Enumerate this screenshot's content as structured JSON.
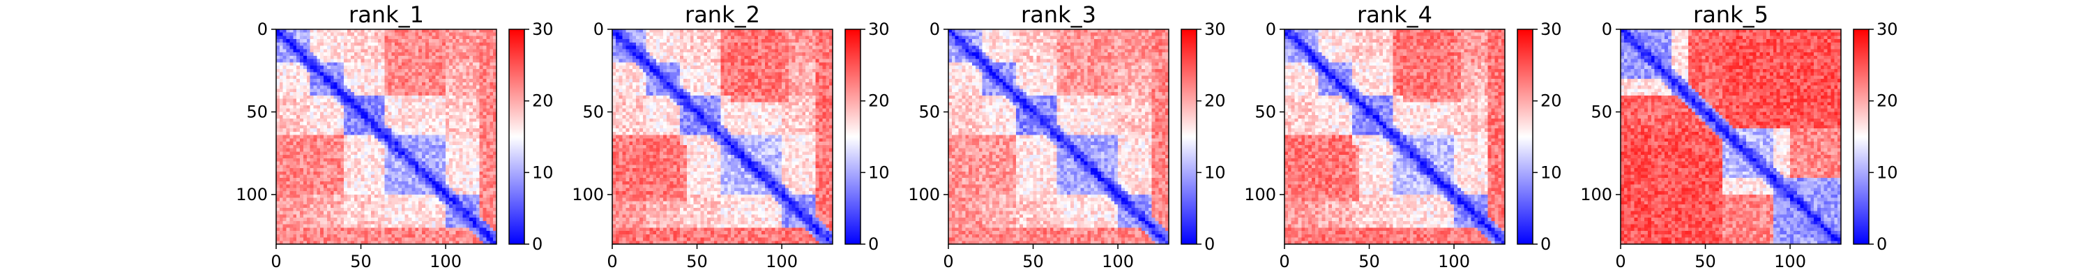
{
  "chart_data": [
    {
      "type": "heatmap",
      "title": "rank_1",
      "matrix_size": 130,
      "xlim": [
        0,
        130
      ],
      "ylim": [
        130,
        0
      ],
      "xticks": [
        0,
        50,
        100
      ],
      "yticks": [
        0,
        50,
        100
      ],
      "colorbar": {
        "range": [
          0,
          30
        ],
        "ticks": [
          0,
          10,
          20,
          30
        ]
      },
      "colormap": [
        "#0000ff",
        "#ffffff",
        "#ff0000"
      ],
      "blocks": [
        {
          "range": [
            0,
            20
          ],
          "mean": 10
        },
        {
          "range": [
            20,
            40
          ],
          "mean": 9
        },
        {
          "range": [
            40,
            65
          ],
          "mean": 8
        },
        {
          "range": [
            65,
            100
          ],
          "mean": 10
        },
        {
          "range": [
            100,
            120
          ],
          "mean": 9
        },
        {
          "range": [
            120,
            130
          ],
          "mean": 7
        }
      ],
      "far_contacts": [
        {
          "rows": [
            0,
            40
          ],
          "cols": [
            70,
            100
          ],
          "value": 21
        },
        {
          "rows": [
            65,
            100
          ],
          "cols": [
            0,
            40
          ],
          "value": 22
        },
        {
          "rows": [
            65,
            100
          ],
          "cols": [
            120,
            130
          ],
          "value": 21
        },
        {
          "rows": [
            120,
            130
          ],
          "cols": [
            0,
            130
          ],
          "value": 22
        }
      ]
    },
    {
      "type": "heatmap",
      "title": "rank_2",
      "matrix_size": 130,
      "xlim": [
        0,
        130
      ],
      "ylim": [
        130,
        0
      ],
      "xticks": [
        0,
        50,
        100
      ],
      "yticks": [
        0,
        50,
        100
      ],
      "colorbar": {
        "range": [
          0,
          30
        ],
        "ticks": [
          0,
          10,
          20,
          30
        ]
      },
      "colormap": [
        "#0000ff",
        "#ffffff",
        "#ff0000"
      ],
      "blocks": [
        {
          "range": [
            0,
            20
          ],
          "mean": 10
        },
        {
          "range": [
            20,
            40
          ],
          "mean": 9
        },
        {
          "range": [
            40,
            65
          ],
          "mean": 8
        },
        {
          "range": [
            65,
            100
          ],
          "mean": 11
        },
        {
          "range": [
            100,
            120
          ],
          "mean": 9
        },
        {
          "range": [
            120,
            130
          ],
          "mean": 7
        }
      ],
      "far_contacts": [
        {
          "rows": [
            0,
            45
          ],
          "cols": [
            70,
            105
          ],
          "value": 22
        },
        {
          "rows": [
            65,
            100
          ],
          "cols": [
            0,
            40
          ],
          "value": 23
        },
        {
          "rows": [
            65,
            100
          ],
          "cols": [
            120,
            130
          ],
          "value": 22
        },
        {
          "rows": [
            120,
            130
          ],
          "cols": [
            0,
            130
          ],
          "value": 23
        }
      ]
    },
    {
      "type": "heatmap",
      "title": "rank_3",
      "matrix_size": 130,
      "xlim": [
        0,
        130
      ],
      "ylim": [
        130,
        0
      ],
      "xticks": [
        0,
        50,
        100
      ],
      "yticks": [
        0,
        50,
        100
      ],
      "colorbar": {
        "range": [
          0,
          30
        ],
        "ticks": [
          0,
          10,
          20,
          30
        ]
      },
      "colormap": [
        "#0000ff",
        "#ffffff",
        "#ff0000"
      ],
      "blocks": [
        {
          "range": [
            0,
            20
          ],
          "mean": 10
        },
        {
          "range": [
            20,
            40
          ],
          "mean": 9
        },
        {
          "range": [
            40,
            65
          ],
          "mean": 8
        },
        {
          "range": [
            65,
            100
          ],
          "mean": 10
        },
        {
          "range": [
            100,
            120
          ],
          "mean": 9
        },
        {
          "range": [
            120,
            130
          ],
          "mean": 7
        }
      ],
      "far_contacts": [
        {
          "rows": [
            0,
            40
          ],
          "cols": [
            70,
            100
          ],
          "value": 20
        },
        {
          "rows": [
            65,
            100
          ],
          "cols": [
            0,
            40
          ],
          "value": 21
        },
        {
          "rows": [
            65,
            100
          ],
          "cols": [
            120,
            130
          ],
          "value": 20
        },
        {
          "rows": [
            120,
            130
          ],
          "cols": [
            0,
            130
          ],
          "value": 22
        }
      ]
    },
    {
      "type": "heatmap",
      "title": "rank_4",
      "matrix_size": 130,
      "xlim": [
        0,
        130
      ],
      "ylim": [
        130,
        0
      ],
      "xticks": [
        0,
        50,
        100
      ],
      "yticks": [
        0,
        50,
        100
      ],
      "colorbar": {
        "range": [
          0,
          30
        ],
        "ticks": [
          0,
          10,
          20,
          30
        ]
      },
      "colormap": [
        "#0000ff",
        "#ffffff",
        "#ff0000"
      ],
      "blocks": [
        {
          "range": [
            0,
            20
          ],
          "mean": 10
        },
        {
          "range": [
            20,
            40
          ],
          "mean": 9
        },
        {
          "range": [
            40,
            65
          ],
          "mean": 8
        },
        {
          "range": [
            65,
            100
          ],
          "mean": 11
        },
        {
          "range": [
            100,
            120
          ],
          "mean": 9
        },
        {
          "range": [
            120,
            130
          ],
          "mean": 7
        }
      ],
      "far_contacts": [
        {
          "rows": [
            0,
            45
          ],
          "cols": [
            70,
            105
          ],
          "value": 22
        },
        {
          "rows": [
            65,
            100
          ],
          "cols": [
            0,
            40
          ],
          "value": 23
        },
        {
          "rows": [
            65,
            100
          ],
          "cols": [
            120,
            130
          ],
          "value": 22
        },
        {
          "rows": [
            120,
            130
          ],
          "cols": [
            0,
            130
          ],
          "value": 23
        }
      ]
    },
    {
      "type": "heatmap",
      "title": "rank_5",
      "matrix_size": 130,
      "xlim": [
        0,
        130
      ],
      "ylim": [
        130,
        0
      ],
      "xticks": [
        0,
        50,
        100
      ],
      "yticks": [
        0,
        50,
        100
      ],
      "colorbar": {
        "range": [
          0,
          30
        ],
        "ticks": [
          0,
          10,
          20,
          30
        ]
      },
      "colormap": [
        "#0000ff",
        "#ffffff",
        "#ff0000"
      ],
      "blocks": [
        {
          "range": [
            0,
            30
          ],
          "mean": 9
        },
        {
          "range": [
            30,
            60
          ],
          "mean": 12
        },
        {
          "range": [
            60,
            90
          ],
          "mean": 11
        },
        {
          "range": [
            90,
            130
          ],
          "mean": 9
        }
      ],
      "far_contacts": [
        {
          "rows": [
            0,
            60
          ],
          "cols": [
            40,
            130
          ],
          "value": 24
        },
        {
          "rows": [
            60,
            130
          ],
          "cols": [
            0,
            60
          ],
          "value": 25
        },
        {
          "rows": [
            60,
            90
          ],
          "cols": [
            100,
            130
          ],
          "value": 22
        }
      ]
    }
  ]
}
